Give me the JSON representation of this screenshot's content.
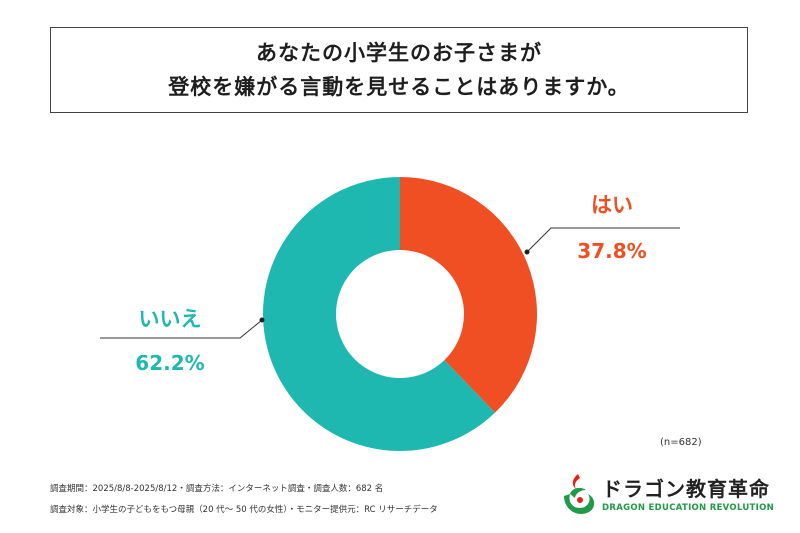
{
  "title": {
    "line1": "あなたの小学生のお子さまが",
    "line2": "登校を嫌がる言動を見せることはありますか。"
  },
  "chart_data": {
    "type": "pie",
    "donut": true,
    "categories": [
      "はい",
      "いいえ"
    ],
    "values": [
      37.8,
      62.2
    ],
    "value_labels": [
      "37.8%",
      "62.2%"
    ],
    "colors": [
      "#f04e23",
      "#1fb8b0"
    ]
  },
  "sample_size": "(n=682)",
  "footer": {
    "line1": "調査期間：2025/8/8-2025/8/12・調査方法：インターネット調査・調査人数：682 名",
    "line2": "調査対象：小学生の子どもをもつ母親（20 代〜 50 代の女性）・モニター提供元：RC リサーチデータ"
  },
  "logo": {
    "name_jp": "ドラゴン教育革命",
    "name_en": "DRAGON EDUCATION REVOLUTION",
    "colors": {
      "red": "#e2231a",
      "green": "#1f9a48"
    }
  }
}
